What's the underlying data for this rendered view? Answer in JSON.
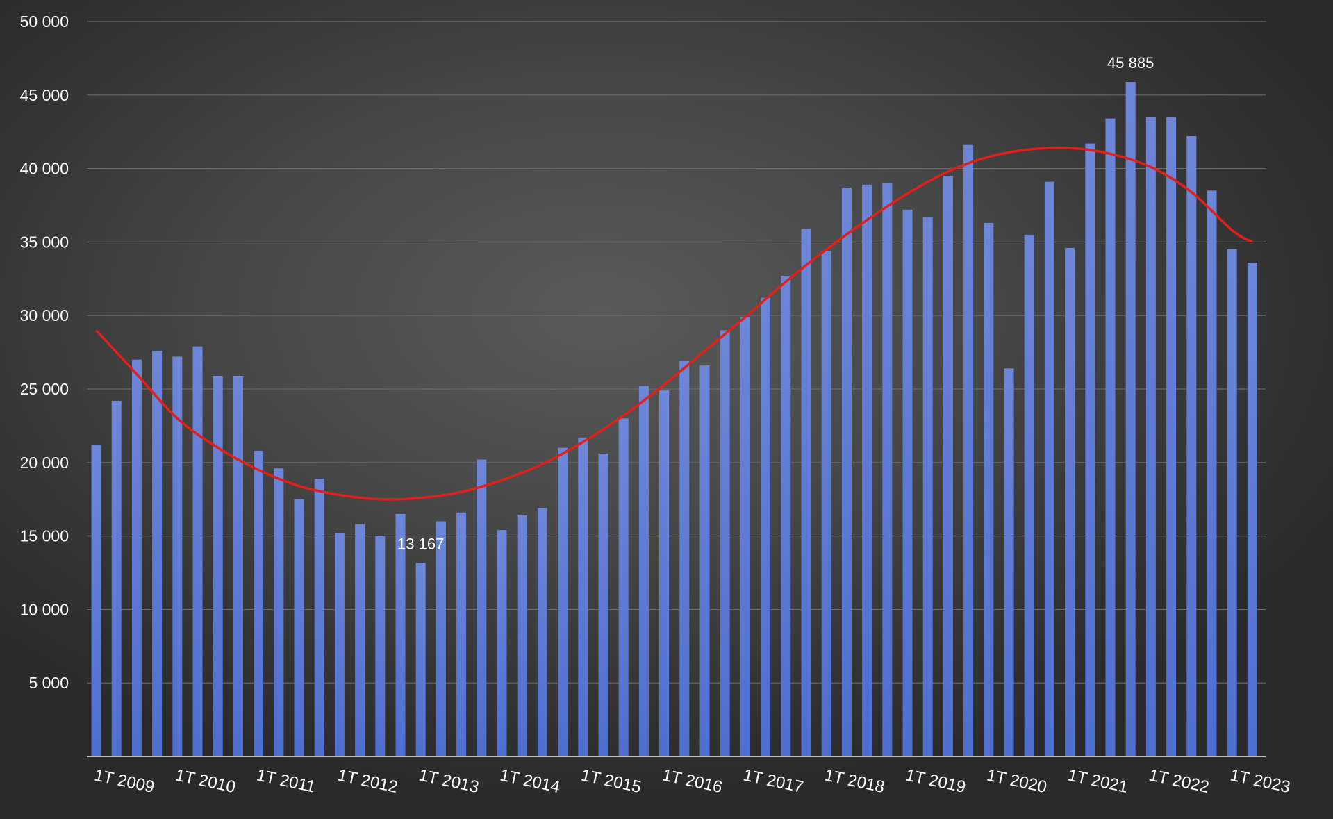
{
  "chart_data": {
    "type": "bar",
    "title": "",
    "xlabel": "",
    "ylabel": "",
    "ylim": [
      0,
      50000
    ],
    "yticks": [
      5000,
      10000,
      15000,
      20000,
      25000,
      30000,
      35000,
      40000,
      45000,
      50000
    ],
    "ytick_labels": [
      "5 000",
      "10 000",
      "15 000",
      "20 000",
      "25 000",
      "30 000",
      "35 000",
      "40 000",
      "45 000",
      "50 000"
    ],
    "grid": true,
    "legend": "none",
    "bar_color": "#4f6fd0",
    "trend_color": "#e0201b",
    "xtick_labels": [
      {
        "label": "1T 2009",
        "index": 0
      },
      {
        "label": "1T 2010",
        "index": 4
      },
      {
        "label": "1T 2011",
        "index": 8
      },
      {
        "label": "1T 2012",
        "index": 12
      },
      {
        "label": "1T 2013",
        "index": 16
      },
      {
        "label": "1T 2014",
        "index": 20
      },
      {
        "label": "1T 2015",
        "index": 24
      },
      {
        "label": "1T 2016",
        "index": 28
      },
      {
        "label": "1T 2017",
        "index": 32
      },
      {
        "label": "1T 2018",
        "index": 36
      },
      {
        "label": "1T 2019",
        "index": 40
      },
      {
        "label": "1T 2020",
        "index": 44
      },
      {
        "label": "1T 2021",
        "index": 48
      },
      {
        "label": "1T 2022",
        "index": 52
      },
      {
        "label": "1T 2023",
        "index": 56
      }
    ],
    "values": [
      21200,
      24200,
      27000,
      27600,
      27200,
      27900,
      25900,
      25900,
      20800,
      19600,
      17500,
      18900,
      15200,
      15800,
      15000,
      16500,
      13167,
      16000,
      16600,
      20200,
      15400,
      16400,
      16900,
      21000,
      21700,
      20600,
      23000,
      25200,
      24900,
      26900,
      26600,
      29000,
      29900,
      31200,
      32700,
      35900,
      34400,
      38700,
      38900,
      39000,
      37200,
      36700,
      39500,
      41600,
      36300,
      26400,
      35500,
      39100,
      34600,
      41700,
      43400,
      45885,
      43500,
      43500,
      42200,
      38500,
      34500,
      33600
    ],
    "data_labels": [
      {
        "index": 16,
        "text": "13 167"
      },
      {
        "index": 51,
        "text": "45 885"
      }
    ],
    "trend": {
      "type": "polynomial",
      "points": [
        [
          0,
          29000
        ],
        [
          2,
          26000
        ],
        [
          4,
          23000
        ],
        [
          6,
          21000
        ],
        [
          8,
          19500
        ],
        [
          10,
          18400
        ],
        [
          12,
          17800
        ],
        [
          14,
          17500
        ],
        [
          16,
          17600
        ],
        [
          18,
          18000
        ],
        [
          20,
          18800
        ],
        [
          22,
          19900
        ],
        [
          24,
          21400
        ],
        [
          26,
          23200
        ],
        [
          28,
          25300
        ],
        [
          30,
          27600
        ],
        [
          32,
          29900
        ],
        [
          34,
          32300
        ],
        [
          36,
          34500
        ],
        [
          38,
          36500
        ],
        [
          40,
          38300
        ],
        [
          42,
          39800
        ],
        [
          44,
          40800
        ],
        [
          46,
          41300
        ],
        [
          48,
          41400
        ],
        [
          50,
          41000
        ],
        [
          52,
          40100
        ],
        [
          54,
          38400
        ],
        [
          56,
          35800
        ],
        [
          57,
          35000
        ]
      ]
    }
  }
}
